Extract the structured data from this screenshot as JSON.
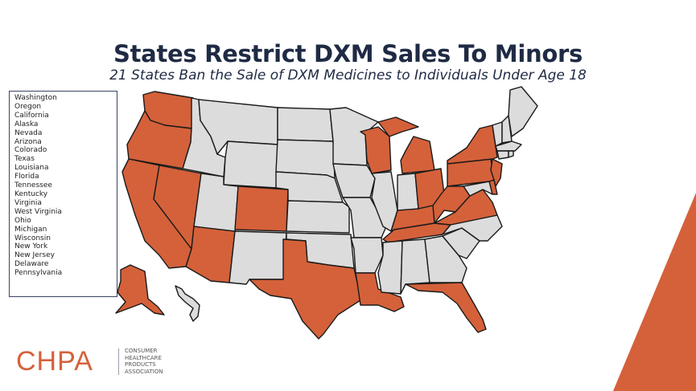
{
  "title": "States Restrict DXM Sales To Minors",
  "subtitle": "21 States Ban the Sale of DXM Medicines to Individuals Under Age 18",
  "legend_states": [
    "Washington",
    "Oregon",
    "California",
    "Alaska",
    "Nevada",
    "Arizona",
    "Colorado",
    "Texas",
    "Louisiana",
    "Florida",
    "Tennessee",
    "Kentucky",
    "Virginia",
    "West Virginia",
    "Ohio",
    "Michigan",
    "Wisconsin",
    "New York",
    "New Jersey",
    "Delaware",
    "Pennsylvania"
  ],
  "logo": {
    "word": "CHPA",
    "tagline": [
      "CONSUMER",
      "HEALTHCARE",
      "PRODUCTS",
      "ASSOCIATION"
    ]
  },
  "colors": {
    "restricted": "#d4613a",
    "unrestricted": "#dcdcdc",
    "border": "#1a1a1a",
    "accent_stripe": "#d4613a",
    "title": "#1f2a44"
  }
}
